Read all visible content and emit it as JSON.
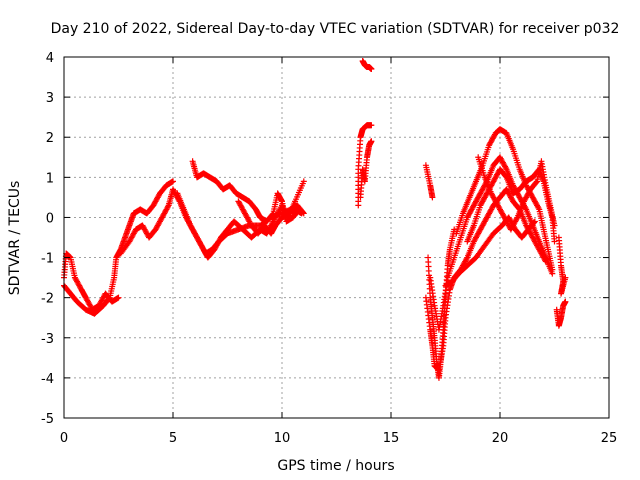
{
  "chart_data": {
    "type": "scatter",
    "title": "Day 210 of 2022, Sidereal Day-to-day VTEC variation (SDTVAR) for receiver p032",
    "xlabel": "GPS time / hours",
    "ylabel": "SDTVAR / TECUs",
    "xlim": [
      0,
      25
    ],
    "ylim": [
      -5,
      4
    ],
    "xticks": [
      0,
      5,
      10,
      15,
      20,
      25
    ],
    "yticks": [
      -5,
      -4,
      -3,
      -2,
      -1,
      0,
      1,
      2,
      3,
      4
    ],
    "grid": true,
    "marker": "+",
    "color": "#ff0000",
    "series": [
      {
        "name": "SDTVAR",
        "segments": [
          [
            [
              0.0,
              -1.5
            ],
            [
              0.1,
              -0.9
            ],
            [
              0.3,
              -1.0
            ],
            [
              0.5,
              -1.5
            ],
            [
              0.8,
              -1.8
            ],
            [
              1.0,
              -2.0
            ],
            [
              1.3,
              -2.3
            ],
            [
              1.6,
              -2.2
            ],
            [
              1.9,
              -1.9
            ],
            [
              2.2,
              -2.1
            ],
            [
              2.5,
              -2.0
            ]
          ],
          [
            [
              0.0,
              -1.7
            ],
            [
              0.3,
              -1.9
            ],
            [
              0.6,
              -2.1
            ],
            [
              1.0,
              -2.3
            ],
            [
              1.4,
              -2.4
            ],
            [
              1.8,
              -2.2
            ],
            [
              2.1,
              -2.0
            ],
            [
              2.3,
              -1.5
            ],
            [
              2.4,
              -1.0
            ],
            [
              2.6,
              -0.8
            ],
            [
              2.8,
              -0.5
            ],
            [
              3.0,
              -0.2
            ],
            [
              3.2,
              0.1
            ],
            [
              3.5,
              0.2
            ],
            [
              3.8,
              0.1
            ],
            [
              4.1,
              0.3
            ],
            [
              4.4,
              0.6
            ],
            [
              4.7,
              0.8
            ],
            [
              5.0,
              0.9
            ]
          ],
          [
            [
              2.6,
              -0.9
            ],
            [
              3.0,
              -0.6
            ],
            [
              3.3,
              -0.3
            ],
            [
              3.6,
              -0.2
            ],
            [
              3.9,
              -0.5
            ],
            [
              4.2,
              -0.3
            ],
            [
              4.5,
              0.0
            ],
            [
              4.8,
              0.3
            ],
            [
              5.0,
              0.7
            ],
            [
              5.3,
              0.4
            ],
            [
              5.6,
              0.0
            ],
            [
              5.9,
              -0.3
            ],
            [
              6.2,
              -0.6
            ],
            [
              6.5,
              -0.9
            ],
            [
              6.8,
              -0.8
            ],
            [
              7.1,
              -0.6
            ],
            [
              7.5,
              -0.4
            ],
            [
              8.0,
              -0.3
            ],
            [
              8.5,
              -0.2
            ],
            [
              9.0,
              -0.2
            ],
            [
              9.5,
              0.0
            ],
            [
              10.0,
              0.1
            ],
            [
              10.4,
              0.2
            ],
            [
              10.7,
              0.3
            ],
            [
              11.0,
              0.1
            ]
          ],
          [
            [
              5.2,
              0.6
            ],
            [
              5.5,
              0.2
            ],
            [
              5.8,
              -0.2
            ],
            [
              6.1,
              -0.5
            ],
            [
              6.4,
              -0.8
            ],
            [
              6.6,
              -1.0
            ],
            [
              6.9,
              -0.8
            ],
            [
              7.2,
              -0.5
            ],
            [
              7.5,
              -0.3
            ],
            [
              7.8,
              -0.1
            ],
            [
              8.2,
              -0.3
            ],
            [
              8.6,
              -0.5
            ],
            [
              9.0,
              -0.3
            ],
            [
              9.3,
              -0.4
            ],
            [
              9.6,
              -0.1
            ],
            [
              10.0,
              0.3
            ],
            [
              10.3,
              0.0
            ],
            [
              10.6,
              0.4
            ],
            [
              11.0,
              0.9
            ]
          ],
          [
            [
              5.9,
              1.4
            ],
            [
              6.1,
              1.0
            ],
            [
              6.4,
              1.1
            ],
            [
              6.7,
              1.0
            ],
            [
              7.0,
              0.9
            ],
            [
              7.3,
              0.7
            ],
            [
              7.6,
              0.8
            ],
            [
              7.9,
              0.6
            ],
            [
              8.2,
              0.5
            ],
            [
              8.5,
              0.4
            ],
            [
              8.8,
              0.2
            ],
            [
              9.0,
              0.0
            ],
            [
              9.3,
              -0.1
            ],
            [
              9.6,
              0.1
            ],
            [
              9.8,
              0.6
            ],
            [
              10.0,
              0.4
            ],
            [
              10.2,
              -0.1
            ],
            [
              10.5,
              0.0
            ],
            [
              10.8,
              0.2
            ]
          ],
          [
            [
              8.0,
              0.4
            ],
            [
              8.3,
              0.1
            ],
            [
              8.6,
              -0.2
            ],
            [
              8.9,
              -0.4
            ],
            [
              9.2,
              -0.2
            ],
            [
              9.5,
              -0.4
            ],
            [
              9.7,
              -0.2
            ],
            [
              10.0,
              0.0
            ],
            [
              10.3,
              0.1
            ],
            [
              10.6,
              0.2
            ],
            [
              10.9,
              0.1
            ]
          ],
          [
            [
              13.5,
              0.3
            ],
            [
              13.5,
              1.2
            ],
            [
              13.6,
              2.0
            ],
            [
              13.7,
              2.2
            ],
            [
              13.9,
              2.3
            ],
            [
              14.1,
              2.3
            ]
          ],
          [
            [
              13.6,
              0.5
            ],
            [
              13.7,
              1.2
            ],
            [
              13.8,
              0.9
            ],
            [
              13.9,
              1.5
            ],
            [
              14.0,
              1.8
            ],
            [
              14.1,
              1.9
            ]
          ],
          [
            [
              13.7,
              3.9
            ],
            [
              13.8,
              3.8
            ],
            [
              13.9,
              3.75
            ],
            [
              14.0,
              3.75
            ],
            [
              14.1,
              3.7
            ]
          ],
          [
            [
              16.6,
              1.3
            ],
            [
              16.8,
              0.8
            ],
            [
              16.9,
              0.5
            ]
          ],
          [
            [
              16.7,
              -1.0
            ],
            [
              16.8,
              -2.0
            ],
            [
              16.9,
              -2.5
            ],
            [
              17.0,
              -3.0
            ],
            [
              17.1,
              -3.6
            ],
            [
              17.2,
              -4.0
            ],
            [
              17.3,
              -3.5
            ],
            [
              17.4,
              -2.8
            ],
            [
              17.5,
              -2.0
            ],
            [
              17.6,
              -1.2
            ],
            [
              17.7,
              -0.8
            ],
            [
              17.9,
              -0.3
            ]
          ],
          [
            [
              16.6,
              -2.0
            ],
            [
              16.8,
              -2.8
            ],
            [
              16.9,
              -3.2
            ],
            [
              17.0,
              -3.7
            ],
            [
              17.2,
              -3.8
            ],
            [
              17.4,
              -3.2
            ],
            [
              17.5,
              -2.5
            ],
            [
              17.7,
              -1.8
            ],
            [
              17.9,
              -1.5
            ],
            [
              18.2,
              -1.3
            ],
            [
              18.5,
              -1.0
            ],
            [
              18.8,
              -0.6
            ],
            [
              19.1,
              -0.3
            ],
            [
              19.4,
              0.0
            ],
            [
              19.7,
              0.3
            ],
            [
              20.0,
              0.5
            ],
            [
              20.3,
              0.7
            ],
            [
              20.6,
              0.4
            ],
            [
              20.9,
              0.2
            ],
            [
              21.2,
              -0.2
            ],
            [
              21.5,
              -0.5
            ],
            [
              21.8,
              -0.8
            ],
            [
              22.1,
              -1.1
            ]
          ],
          [
            [
              16.8,
              -1.5
            ],
            [
              17.0,
              -2.2
            ],
            [
              17.2,
              -2.8
            ],
            [
              17.4,
              -2.2
            ],
            [
              17.6,
              -1.5
            ],
            [
              17.9,
              -1.0
            ],
            [
              18.2,
              -0.5
            ],
            [
              18.5,
              0.0
            ],
            [
              18.8,
              0.3
            ],
            [
              19.1,
              0.6
            ],
            [
              19.4,
              0.9
            ],
            [
              19.7,
              1.3
            ],
            [
              20.0,
              1.5
            ],
            [
              20.3,
              1.2
            ],
            [
              20.6,
              0.8
            ],
            [
              20.9,
              0.5
            ],
            [
              21.2,
              0.2
            ],
            [
              21.5,
              -0.2
            ],
            [
              21.8,
              -0.6
            ],
            [
              22.1,
              -1.0
            ],
            [
              22.4,
              -1.4
            ]
          ],
          [
            [
              17.5,
              -1.7
            ],
            [
              17.8,
              -1.6
            ],
            [
              18.1,
              -1.4
            ],
            [
              18.5,
              -1.2
            ],
            [
              18.9,
              -1.0
            ],
            [
              19.3,
              -0.7
            ],
            [
              19.7,
              -0.4
            ],
            [
              20.1,
              -0.2
            ],
            [
              20.4,
              0.0
            ],
            [
              20.7,
              -0.3
            ],
            [
              21.0,
              -0.5
            ],
            [
              21.3,
              -0.3
            ],
            [
              21.6,
              -0.1
            ]
          ],
          [
            [
              18.0,
              -0.4
            ],
            [
              18.3,
              0.1
            ],
            [
              18.6,
              0.5
            ],
            [
              18.9,
              0.9
            ],
            [
              19.2,
              1.3
            ],
            [
              19.5,
              1.8
            ],
            [
              19.8,
              2.1
            ],
            [
              20.0,
              2.2
            ],
            [
              20.3,
              2.1
            ],
            [
              20.6,
              1.7
            ],
            [
              20.9,
              1.2
            ],
            [
              21.2,
              0.8
            ],
            [
              21.5,
              0.5
            ],
            [
              21.8,
              0.2
            ],
            [
              22.0,
              -0.3
            ],
            [
              22.2,
              -0.8
            ],
            [
              22.4,
              -1.3
            ]
          ],
          [
            [
              18.5,
              -0.6
            ],
            [
              18.8,
              -0.2
            ],
            [
              19.1,
              0.3
            ],
            [
              19.4,
              0.6
            ],
            [
              19.7,
              0.9
            ],
            [
              20.0,
              1.2
            ],
            [
              20.3,
              1.0
            ],
            [
              20.6,
              0.6
            ],
            [
              20.9,
              0.7
            ],
            [
              21.2,
              0.9
            ],
            [
              21.5,
              1.0
            ],
            [
              21.8,
              1.2
            ],
            [
              22.0,
              0.9
            ],
            [
              22.2,
              0.4
            ],
            [
              22.4,
              0.0
            ],
            [
              22.5,
              -0.6
            ]
          ],
          [
            [
              19.0,
              1.5
            ],
            [
              19.3,
              1.0
            ],
            [
              19.6,
              0.6
            ],
            [
              19.9,
              0.3
            ],
            [
              20.2,
              0.0
            ],
            [
              20.5,
              -0.3
            ],
            [
              20.8,
              0.0
            ],
            [
              21.1,
              0.4
            ],
            [
              21.4,
              0.7
            ],
            [
              21.7,
              0.9
            ],
            [
              21.9,
              1.4
            ],
            [
              22.1,
              0.8
            ],
            [
              22.3,
              0.3
            ],
            [
              22.5,
              -0.2
            ]
          ],
          [
            [
              22.7,
              -0.5
            ],
            [
              22.8,
              -1.2
            ],
            [
              22.9,
              -1.6
            ],
            [
              22.8,
              -1.9
            ],
            [
              23.0,
              -1.5
            ]
          ],
          [
            [
              22.6,
              -2.3
            ],
            [
              22.7,
              -2.7
            ],
            [
              22.8,
              -2.5
            ],
            [
              22.9,
              -2.2
            ],
            [
              23.0,
              -2.1
            ]
          ]
        ]
      }
    ]
  }
}
